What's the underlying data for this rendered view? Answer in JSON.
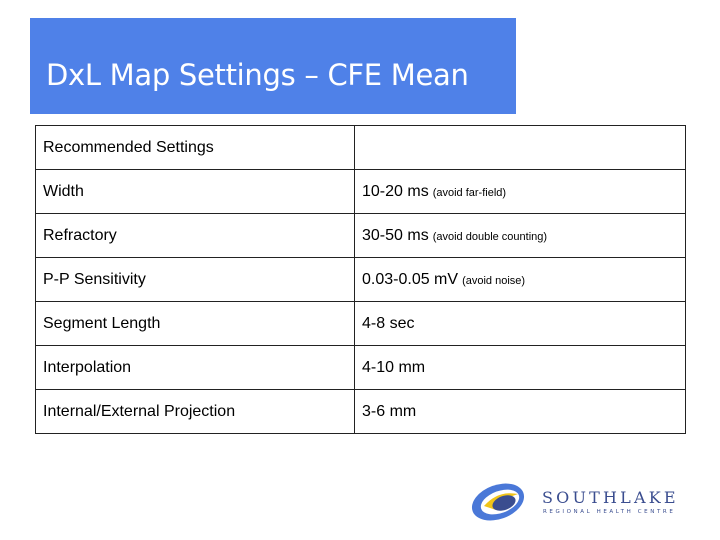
{
  "slide": {
    "title": "DxL Map Settings – CFE Mean"
  },
  "settings_table": {
    "header": {
      "label": "Recommended Settings",
      "value": ""
    },
    "rows": [
      {
        "label": "Width",
        "value": "10-20 ms",
        "note": "(avoid far-field)"
      },
      {
        "label": "Refractory",
        "value": "30-50 ms",
        "note": "(avoid double counting)"
      },
      {
        "label": "P-P Sensitivity",
        "value": "0.03-0.05 mV",
        "note": "(avoid noise)"
      },
      {
        "label": "Segment Length",
        "value": "4-8 sec",
        "note": ""
      },
      {
        "label": "Interpolation",
        "value": "4-10 mm",
        "note": ""
      },
      {
        "label": "Internal/External Projection",
        "value": "3-6 mm",
        "note": ""
      }
    ]
  },
  "logo": {
    "name": "SOUTHLAKE",
    "subtitle": "REGIONAL HEALTH CENTRE",
    "icon": "southlake-logo-mark",
    "colors": {
      "navy": "#3a4d8f",
      "blue": "#4a78d8",
      "gold": "#f0c419"
    }
  },
  "colors": {
    "title_band": "#4f81e8",
    "title_text": "#ffffff"
  }
}
